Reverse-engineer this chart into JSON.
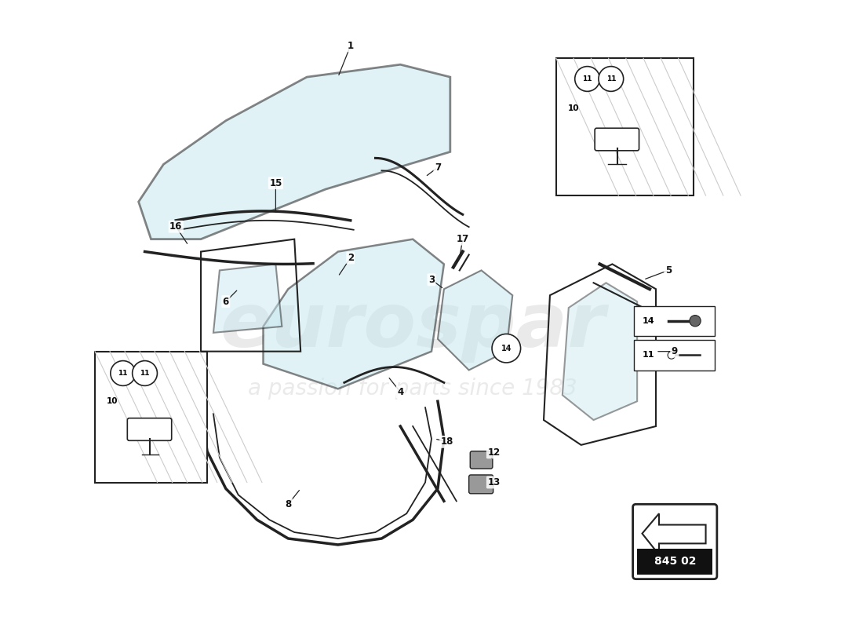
{
  "bg_color": "#ffffff",
  "part_number_box": "845 02",
  "glass_color": "#c8e8f0",
  "glass_alpha": 0.55,
  "line_color": "#222222",
  "watermark1": "eurospar",
  "watermark2": "a passion for parts since 1983"
}
